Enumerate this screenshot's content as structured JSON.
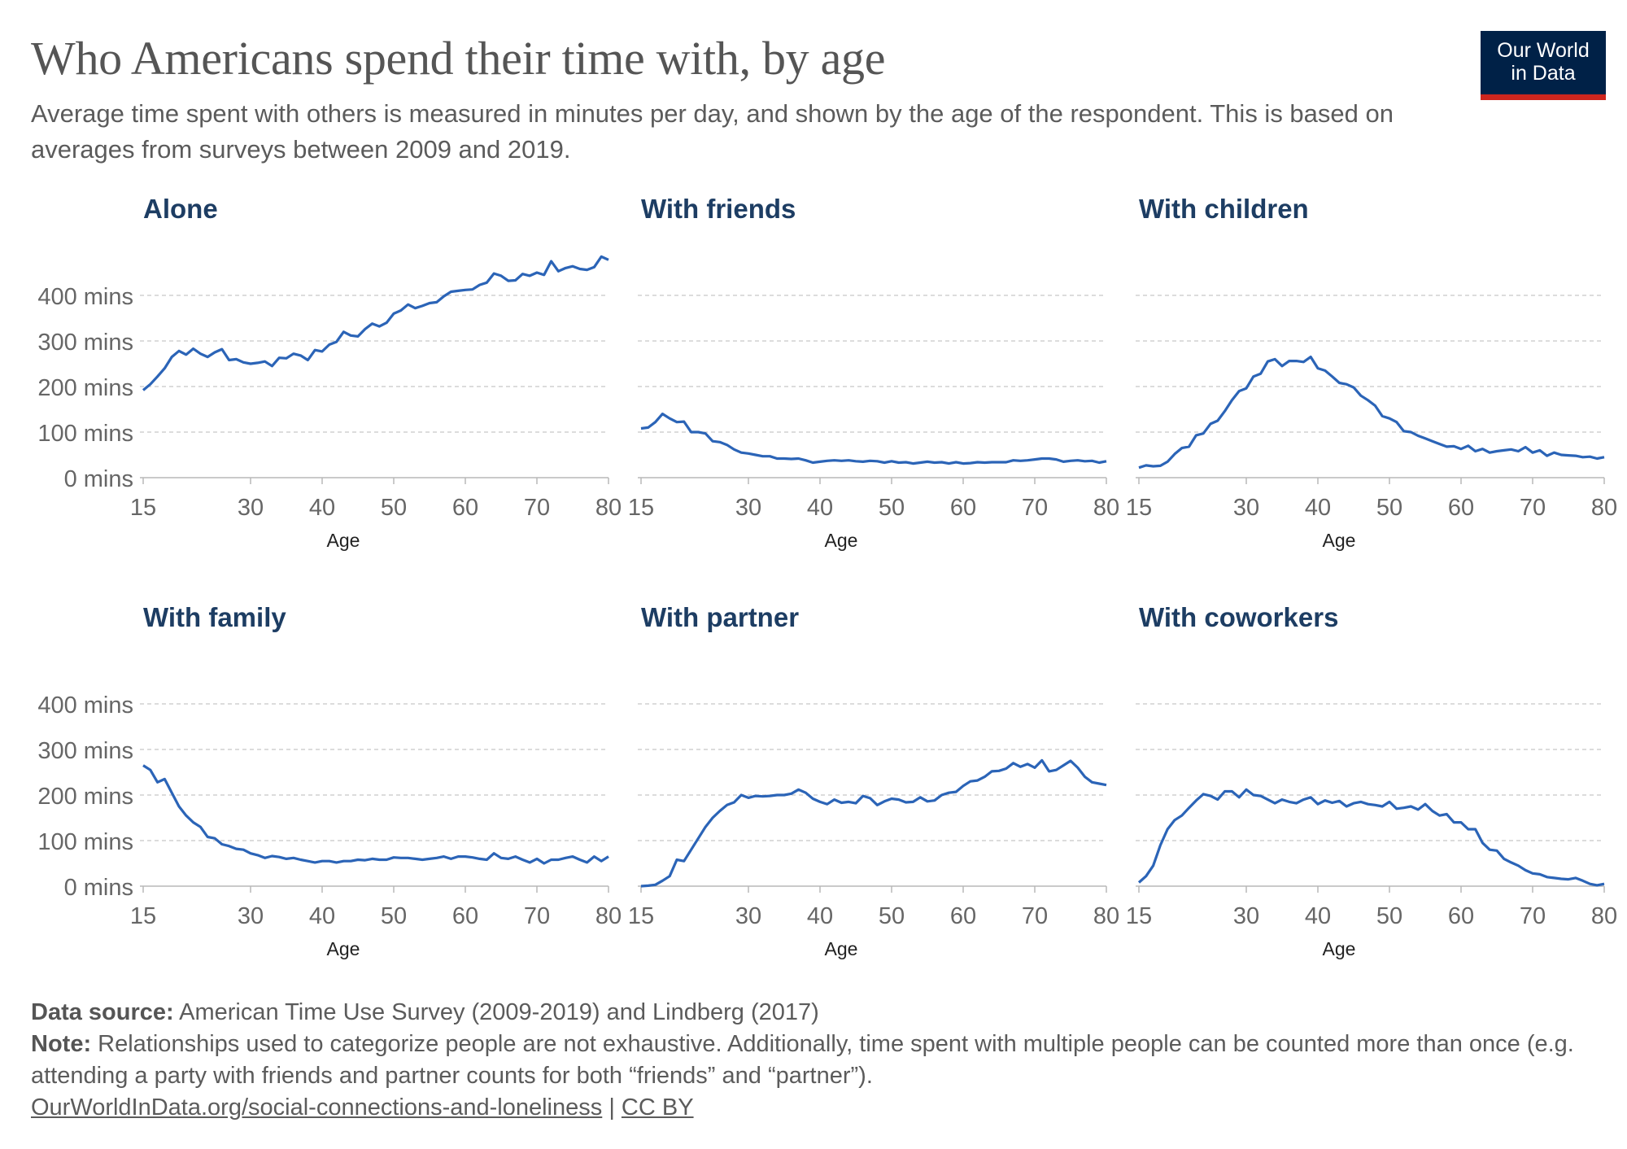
{
  "title": "Who Americans spend their time with, by age",
  "subtitle": "Average time spent with others is measured in minutes per day, and shown by the age of the respondent. This is based on averages from surveys between 2009 and 2019.",
  "logo": {
    "line1": "Our World",
    "line2": "in Data",
    "bg": "#002147",
    "accent": "#ce261e"
  },
  "footer": {
    "source_label": "Data source:",
    "source_text": " American Time Use Survey (2009-2019) and Lindberg (2017)",
    "note_label": "Note:",
    "note_text": " Relationships used to categorize people are not exhaustive. Additionally, time spent with multiple people can be counted more than once (e.g. attending a party with friends and partner counts for both “friends” and “partner”).",
    "url": "OurWorldInData.org/social-connections-and-loneliness",
    "separator": " | ",
    "license": "CC BY"
  },
  "chart_data": {
    "type": "line",
    "line_color": "#2b64b7",
    "title_color": "#1d3d63",
    "grid": true,
    "xlabel": "Age",
    "xlim": [
      15,
      80
    ],
    "ylim": [
      0,
      500
    ],
    "xticks": [
      15,
      30,
      40,
      50,
      60,
      70,
      80
    ],
    "yticks": [
      0,
      100,
      200,
      300,
      400
    ],
    "ytick_labels": [
      "0 mins",
      "100 mins",
      "200 mins",
      "300 mins",
      "400 mins"
    ],
    "x": [
      15,
      16,
      17,
      18,
      19,
      20,
      21,
      22,
      23,
      24,
      25,
      26,
      27,
      28,
      29,
      30,
      31,
      32,
      33,
      34,
      35,
      36,
      37,
      38,
      39,
      40,
      41,
      42,
      43,
      44,
      45,
      46,
      47,
      48,
      49,
      50,
      51,
      52,
      53,
      54,
      55,
      56,
      57,
      58,
      59,
      60,
      61,
      62,
      63,
      64,
      65,
      66,
      67,
      68,
      69,
      70,
      71,
      72,
      73,
      74,
      75,
      76,
      77,
      78,
      79,
      80
    ],
    "panels": [
      {
        "title": "Alone",
        "values": [
          192,
          205,
          222,
          240,
          265,
          278,
          270,
          283,
          272,
          265,
          275,
          282,
          258,
          260,
          253,
          250,
          252,
          255,
          245,
          263,
          262,
          272,
          268,
          258,
          280,
          277,
          292,
          298,
          320,
          312,
          310,
          326,
          338,
          332,
          340,
          360,
          367,
          380,
          372,
          377,
          383,
          385,
          398,
          408,
          410,
          412,
          413,
          423,
          428,
          448,
          443,
          432,
          433,
          447,
          443,
          450,
          445,
          475,
          453,
          460,
          464,
          458,
          456,
          462,
          485,
          478
        ]
      },
      {
        "title": "With friends",
        "values": [
          108,
          110,
          122,
          140,
          130,
          122,
          123,
          100,
          100,
          97,
          80,
          78,
          72,
          62,
          55,
          53,
          50,
          47,
          47,
          42,
          42,
          41,
          42,
          38,
          33,
          35,
          37,
          38,
          37,
          38,
          36,
          35,
          37,
          36,
          33,
          36,
          33,
          34,
          31,
          33,
          35,
          33,
          34,
          31,
          34,
          31,
          32,
          34,
          33,
          34,
          34,
          34,
          38,
          37,
          38,
          40,
          42,
          42,
          40,
          35,
          37,
          38,
          36,
          37,
          33,
          36
        ]
      },
      {
        "title": "With children",
        "values": [
          22,
          27,
          25,
          26,
          35,
          52,
          65,
          68,
          93,
          97,
          118,
          125,
          146,
          170,
          190,
          196,
          222,
          228,
          255,
          260,
          245,
          256,
          256,
          254,
          265,
          240,
          235,
          222,
          208,
          205,
          198,
          180,
          170,
          158,
          135,
          130,
          122,
          102,
          100,
          92,
          86,
          80,
          74,
          68,
          69,
          63,
          70,
          58,
          63,
          55,
          58,
          60,
          62,
          58,
          67,
          55,
          60,
          48,
          55,
          50,
          49,
          48,
          45,
          46,
          42,
          45
        ]
      },
      {
        "title": "With family",
        "values": [
          265,
          255,
          228,
          235,
          205,
          175,
          155,
          140,
          130,
          108,
          105,
          92,
          88,
          82,
          80,
          72,
          68,
          62,
          66,
          64,
          60,
          62,
          58,
          55,
          52,
          55,
          55,
          52,
          55,
          55,
          58,
          57,
          60,
          58,
          58,
          63,
          62,
          62,
          60,
          58,
          60,
          62,
          65,
          60,
          65,
          65,
          63,
          60,
          58,
          72,
          62,
          60,
          65,
          58,
          52,
          60,
          50,
          58,
          58,
          62,
          65,
          58,
          52,
          65,
          55,
          65
        ]
      },
      {
        "title": "With partner",
        "values": [
          0,
          1,
          3,
          12,
          22,
          58,
          55,
          80,
          105,
          130,
          150,
          165,
          178,
          184,
          200,
          194,
          198,
          197,
          198,
          200,
          200,
          203,
          212,
          205,
          192,
          185,
          180,
          190,
          183,
          185,
          182,
          198,
          193,
          178,
          186,
          192,
          190,
          184,
          185,
          195,
          186,
          188,
          200,
          205,
          207,
          220,
          230,
          232,
          240,
          252,
          253,
          258,
          270,
          262,
          268,
          260,
          276,
          252,
          255,
          265,
          275,
          260,
          240,
          228,
          225,
          222
        ]
      },
      {
        "title": "With coworkers",
        "values": [
          8,
          22,
          45,
          90,
          125,
          145,
          155,
          172,
          188,
          202,
          198,
          190,
          208,
          208,
          195,
          212,
          200,
          198,
          190,
          182,
          190,
          185,
          182,
          190,
          195,
          180,
          188,
          183,
          187,
          175,
          182,
          185,
          180,
          178,
          175,
          185,
          170,
          172,
          175,
          168,
          180,
          165,
          155,
          158,
          140,
          140,
          125,
          125,
          95,
          80,
          78,
          60,
          52,
          45,
          35,
          28,
          26,
          20,
          18,
          16,
          15,
          18,
          12,
          5,
          2,
          5
        ]
      }
    ]
  }
}
